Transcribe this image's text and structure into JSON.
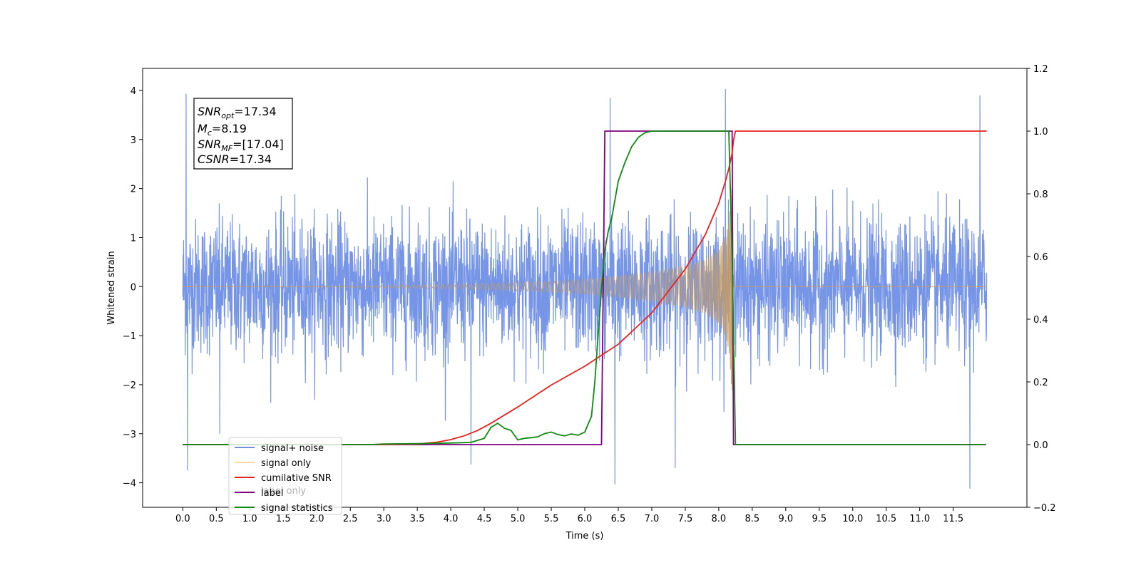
{
  "chart_data": {
    "type": "line",
    "xlabel": "Time (s)",
    "ylabel_left": "Whitened strain",
    "ylabel_right": "",
    "xlim": [
      -0.6,
      12.6
    ],
    "ylim_left": [
      -4.5,
      4.45
    ],
    "ylim_right": [
      -0.2,
      1.2
    ],
    "x_ticks": [
      0.0,
      0.5,
      1.0,
      1.5,
      2.0,
      2.5,
      3.0,
      3.5,
      4.0,
      4.5,
      5.0,
      5.5,
      6.0,
      6.5,
      7.0,
      7.5,
      8.0,
      8.5,
      9.0,
      9.5,
      10.0,
      10.5,
      11.0,
      11.5
    ],
    "x_tick_labels": [
      "0.0",
      "0.5",
      "1.0",
      "1.5",
      "2.0",
      "2.5",
      "3.0",
      "3.5",
      "4.0",
      "4.5",
      "5.0",
      "5.5",
      "6.0",
      "6.5",
      "7.0",
      "7.5",
      "8.0",
      "8.5",
      "9.0",
      "9.5",
      "10.0",
      "10.5",
      "11.0",
      "11.5"
    ],
    "y_left_ticks": [
      4,
      3,
      2,
      1,
      0,
      -1,
      -2,
      -3,
      -4
    ],
    "y_left_tick_labels": [
      "4",
      "3",
      "2",
      "1",
      "0",
      "−1",
      "−2",
      "−3",
      "−4"
    ],
    "y_right_ticks": [
      1.2,
      1.0,
      0.8,
      0.6,
      0.4,
      0.2,
      0.0,
      -0.2
    ],
    "y_right_tick_labels": [
      "1.2",
      "1.0",
      "0.8",
      "0.6",
      "0.4",
      "0.2",
      "0.0",
      "−0.2"
    ],
    "grid": false,
    "legend_position": "lower-left",
    "legend": [
      {
        "name": "signal+ noise",
        "color": "#6f8fe6"
      },
      {
        "name": "signal only",
        "color": "#ffc060"
      },
      {
        "name": "cumilative SNR",
        "color": "#e8221f"
      },
      {
        "name": "label",
        "color": "#800080"
      },
      {
        "name": "signal statistics",
        "color": "#138a13"
      }
    ],
    "legend_overlapped": [
      "label only",
      ""
    ],
    "annotation": {
      "snr_opt": {
        "base": "SNR",
        "sub": "opt",
        "value": "=17.34"
      },
      "mc": {
        "base": "M",
        "sub": "c",
        "value": "=8.19"
      },
      "snr_mf": {
        "base": "SNR",
        "sub": "MF",
        "value": "=[17.04]"
      },
      "csnr": {
        "base": "CSNR",
        "value": "=17.34"
      }
    },
    "noise": {
      "x_range": [
        0.0,
        12.0
      ],
      "typical_amplitude": 1.9,
      "peak_points": [
        [
          0.05,
          3.93
        ],
        [
          0.07,
          -3.75
        ],
        [
          6.38,
          3.85
        ],
        [
          6.45,
          -4.03
        ],
        [
          7.35,
          -3.7
        ],
        [
          8.1,
          4.03
        ],
        [
          11.9,
          3.9
        ],
        [
          11.75,
          -4.12
        ],
        [
          4.3,
          -3.63
        ],
        [
          0.55,
          -3.0
        ]
      ]
    },
    "signal_only": {
      "x_range": [
        0.0,
        12.0
      ],
      "envelope": [
        [
          0.0,
          0.0
        ],
        [
          2.0,
          0.01
        ],
        [
          3.0,
          0.02
        ],
        [
          4.0,
          0.04
        ],
        [
          5.0,
          0.08
        ],
        [
          5.5,
          0.11
        ],
        [
          6.0,
          0.15
        ],
        [
          6.5,
          0.22
        ],
        [
          7.0,
          0.3
        ],
        [
          7.5,
          0.42
        ],
        [
          7.8,
          0.55
        ],
        [
          8.0,
          0.75
        ],
        [
          8.1,
          1.0
        ],
        [
          8.15,
          1.3
        ],
        [
          8.2,
          2.2
        ],
        [
          8.22,
          0.0
        ],
        [
          12.0,
          0.0
        ]
      ]
    },
    "cumulative_snr": {
      "axis": "right",
      "x": [
        0.0,
        3.0,
        3.5,
        3.8,
        4.0,
        4.2,
        4.4,
        4.6,
        5.0,
        5.5,
        6.0,
        6.5,
        7.0,
        7.5,
        7.8,
        8.0,
        8.1,
        8.15,
        8.2,
        8.22,
        8.25,
        12.0
      ],
      "y": [
        0.0,
        0.0,
        0.002,
        0.008,
        0.016,
        0.028,
        0.045,
        0.068,
        0.12,
        0.19,
        0.25,
        0.32,
        0.42,
        0.56,
        0.67,
        0.77,
        0.84,
        0.88,
        0.93,
        0.97,
        1.0,
        1.0
      ]
    },
    "label": {
      "axis": "right",
      "x": [
        0.0,
        6.25,
        6.3,
        8.2,
        8.22,
        11.99
      ],
      "y": [
        0.0,
        0.0,
        1.0,
        1.0,
        0.0,
        0.0
      ]
    },
    "signal_statistics": {
      "axis": "right",
      "x": [
        0.0,
        2.8,
        3.0,
        3.5,
        4.0,
        4.3,
        4.5,
        4.6,
        4.7,
        4.8,
        4.9,
        5.0,
        5.1,
        5.2,
        5.3,
        5.4,
        5.5,
        5.6,
        5.7,
        5.8,
        5.9,
        6.0,
        6.1,
        6.15,
        6.2,
        6.25,
        6.3,
        6.35,
        6.4,
        6.45,
        6.5,
        6.6,
        6.7,
        6.8,
        6.9,
        7.0,
        7.2,
        8.0,
        8.15,
        8.2,
        8.25,
        11.99
      ],
      "y": [
        0.0,
        0.0,
        0.002,
        0.003,
        0.005,
        0.007,
        0.02,
        0.055,
        0.068,
        0.052,
        0.045,
        0.015,
        0.02,
        0.022,
        0.025,
        0.035,
        0.04,
        0.032,
        0.028,
        0.034,
        0.03,
        0.04,
        0.09,
        0.2,
        0.35,
        0.5,
        0.62,
        0.68,
        0.72,
        0.78,
        0.84,
        0.9,
        0.95,
        0.98,
        0.995,
        1.0,
        1.0,
        1.0,
        1.0,
        0.6,
        0.0,
        0.0
      ]
    }
  }
}
